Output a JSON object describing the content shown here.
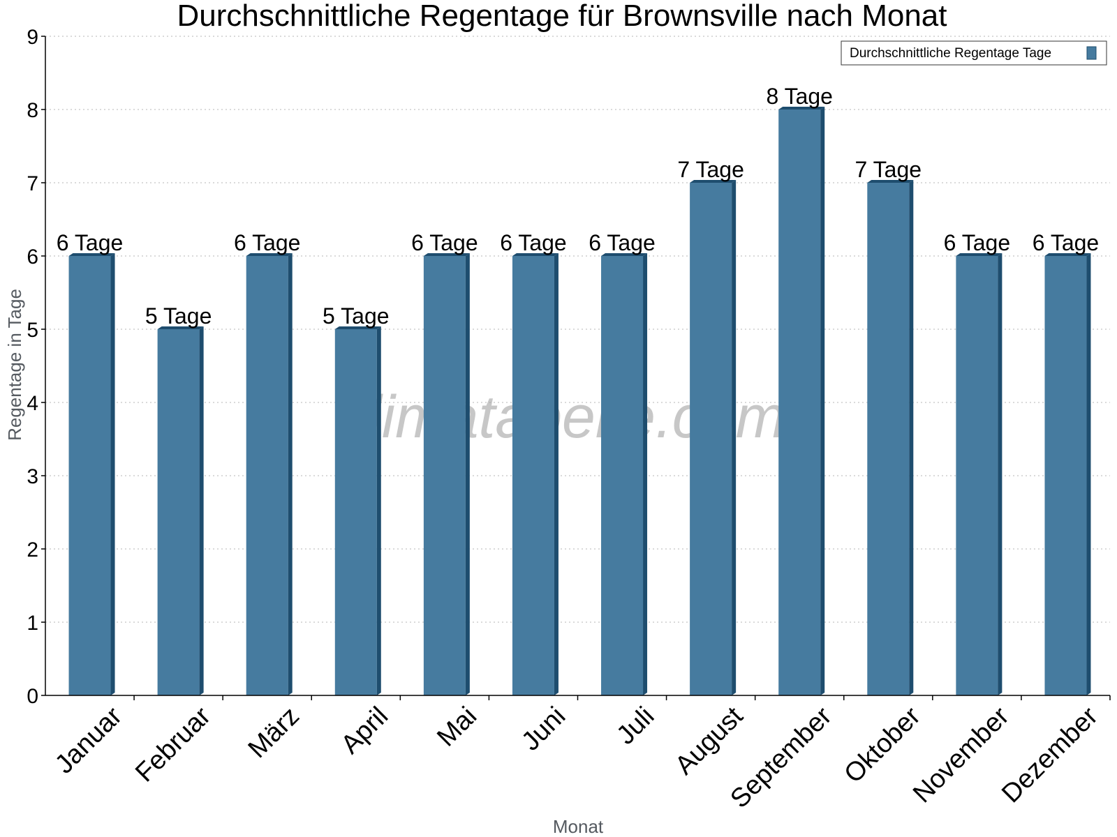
{
  "chart_data": {
    "type": "bar",
    "title": "Durchschnittliche Regentage für Brownsville nach Monat",
    "xlabel": "Monat",
    "ylabel": "Regentage in Tage",
    "ylim": [
      0,
      9
    ],
    "yticks": [
      0,
      1,
      2,
      3,
      4,
      5,
      6,
      7,
      8,
      9
    ],
    "grid": true,
    "legend_position": "top-right",
    "categories": [
      "Januar",
      "Februar",
      "März",
      "April",
      "Mai",
      "Juni",
      "Juli",
      "August",
      "September",
      "Oktober",
      "November",
      "Dezember"
    ],
    "series": [
      {
        "name": "Durchschnittliche Regentage Tage",
        "values": [
          6,
          5,
          6,
          5,
          6,
          6,
          6,
          7,
          8,
          7,
          6,
          6
        ],
        "data_labels": [
          "6 Tage",
          "5 Tage",
          "6 Tage",
          "5 Tage",
          "6 Tage",
          "6 Tage",
          "6 Tage",
          "7 Tage",
          "8 Tage",
          "7 Tage",
          "6 Tage",
          "6 Tage"
        ],
        "color": "#467b9f",
        "shade_color": "#1e4d6e"
      }
    ]
  },
  "watermark": "klimatabelle.com"
}
